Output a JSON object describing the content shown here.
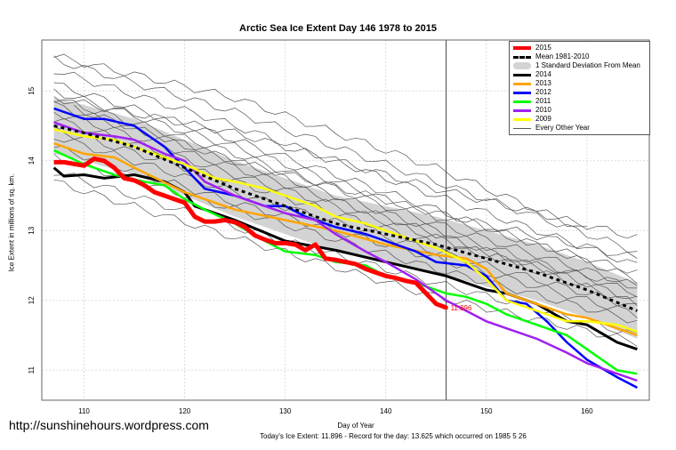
{
  "chart_data": {
    "type": "line",
    "title": "Arctic Sea Ice Extent Day 146 1978 to 2015",
    "xlabel": "Day of Year",
    "ylabel": "Ice Extent in millions of sq. km.",
    "xlim": [
      105.8,
      166.2
    ],
    "ylim": [
      10.57,
      15.73
    ],
    "xticks": [
      110,
      120,
      130,
      140,
      150,
      160
    ],
    "yticks": [
      11,
      12,
      13,
      14,
      15
    ],
    "grid": true,
    "vline_day": 146,
    "legend_placement": "top-right",
    "end_label": "11.896",
    "mean": {
      "name": "Mean 1981-2010",
      "color": "#000000",
      "points": [
        [
          107,
          14.5
        ],
        [
          110,
          14.4
        ],
        [
          115,
          14.2
        ],
        [
          120,
          13.9
        ],
        [
          125,
          13.6
        ],
        [
          130,
          13.35
        ],
        [
          135,
          13.1
        ],
        [
          140,
          12.95
        ],
        [
          145,
          12.8
        ],
        [
          150,
          12.6
        ],
        [
          155,
          12.4
        ],
        [
          160,
          12.15
        ],
        [
          165,
          11.85
        ]
      ]
    },
    "std_band": {
      "name": "1 Standard Deviation From Mean",
      "color": "#d3d3d3",
      "sd": 0.4
    },
    "series": [
      {
        "name": "2014",
        "color": "#000000",
        "points": [
          [
            107,
            13.9
          ],
          [
            108,
            13.78
          ],
          [
            110,
            13.8
          ],
          [
            112,
            13.75
          ],
          [
            115,
            13.8
          ],
          [
            118,
            13.7
          ],
          [
            120,
            13.55
          ],
          [
            121,
            13.35
          ],
          [
            125,
            13.15
          ],
          [
            130,
            12.85
          ],
          [
            135,
            12.72
          ],
          [
            140,
            12.55
          ],
          [
            143,
            12.45
          ],
          [
            146,
            12.35
          ],
          [
            150,
            12.15
          ],
          [
            152,
            12.1
          ],
          [
            155,
            11.95
          ],
          [
            158,
            11.7
          ],
          [
            160,
            11.65
          ],
          [
            163,
            11.4
          ],
          [
            165,
            11.3
          ]
        ]
      },
      {
        "name": "2013",
        "color": "#ffa500",
        "points": [
          [
            107,
            14.25
          ],
          [
            110,
            14.1
          ],
          [
            113,
            14.05
          ],
          [
            115,
            13.9
          ],
          [
            120,
            13.55
          ],
          [
            125,
            13.3
          ],
          [
            130,
            13.15
          ],
          [
            135,
            13.0
          ],
          [
            140,
            12.8
          ],
          [
            145,
            12.65
          ],
          [
            148,
            12.6
          ],
          [
            150,
            12.45
          ],
          [
            152,
            12.1
          ],
          [
            155,
            11.95
          ],
          [
            158,
            11.8
          ],
          [
            160,
            11.75
          ],
          [
            163,
            11.6
          ],
          [
            165,
            11.5
          ]
        ]
      },
      {
        "name": "2012",
        "color": "#0000ff",
        "points": [
          [
            107,
            14.75
          ],
          [
            110,
            14.6
          ],
          [
            112,
            14.6
          ],
          [
            115,
            14.5
          ],
          [
            118,
            14.2
          ],
          [
            120,
            13.9
          ],
          [
            122,
            13.6
          ],
          [
            125,
            13.5
          ],
          [
            128,
            13.35
          ],
          [
            130,
            13.35
          ],
          [
            132,
            13.2
          ],
          [
            135,
            13.05
          ],
          [
            138,
            12.95
          ],
          [
            140,
            12.85
          ],
          [
            143,
            12.7
          ],
          [
            145,
            12.55
          ],
          [
            148,
            12.5
          ],
          [
            150,
            12.35
          ],
          [
            152,
            12.0
          ],
          [
            154,
            11.95
          ],
          [
            156,
            11.7
          ],
          [
            158,
            11.4
          ],
          [
            160,
            11.15
          ],
          [
            163,
            10.9
          ],
          [
            165,
            10.75
          ]
        ]
      },
      {
        "name": "2011",
        "color": "#00ff00",
        "points": [
          [
            107,
            14.15
          ],
          [
            110,
            13.95
          ],
          [
            113,
            13.8
          ],
          [
            116,
            13.7
          ],
          [
            118,
            13.65
          ],
          [
            120,
            13.45
          ],
          [
            122,
            13.3
          ],
          [
            125,
            13.1
          ],
          [
            128,
            12.85
          ],
          [
            130,
            12.7
          ],
          [
            133,
            12.65
          ],
          [
            135,
            12.55
          ],
          [
            138,
            12.5
          ],
          [
            140,
            12.35
          ],
          [
            143,
            12.25
          ],
          [
            146,
            12.1
          ],
          [
            148,
            12.05
          ],
          [
            150,
            11.95
          ],
          [
            152,
            11.8
          ],
          [
            155,
            11.65
          ],
          [
            158,
            11.5
          ],
          [
            160,
            11.3
          ],
          [
            163,
            11.0
          ],
          [
            165,
            10.95
          ]
        ]
      },
      {
        "name": "2010",
        "color": "#a020f0",
        "points": [
          [
            107,
            14.55
          ],
          [
            110,
            14.4
          ],
          [
            113,
            14.35
          ],
          [
            115,
            14.3
          ],
          [
            118,
            14.1
          ],
          [
            120,
            14.0
          ],
          [
            122,
            13.7
          ],
          [
            125,
            13.5
          ],
          [
            128,
            13.35
          ],
          [
            130,
            13.25
          ],
          [
            133,
            13.15
          ],
          [
            135,
            12.95
          ],
          [
            138,
            12.7
          ],
          [
            140,
            12.55
          ],
          [
            143,
            12.3
          ],
          [
            145,
            12.1
          ],
          [
            146,
            12.0
          ],
          [
            148,
            11.85
          ],
          [
            150,
            11.7
          ],
          [
            152,
            11.6
          ],
          [
            155,
            11.45
          ],
          [
            158,
            11.25
          ],
          [
            160,
            11.1
          ],
          [
            163,
            10.95
          ],
          [
            165,
            10.85
          ]
        ]
      },
      {
        "name": "2009",
        "color": "#ffff00",
        "points": [
          [
            107,
            14.45
          ],
          [
            110,
            14.35
          ],
          [
            113,
            14.3
          ],
          [
            115,
            14.2
          ],
          [
            118,
            14.05
          ],
          [
            120,
            13.95
          ],
          [
            123,
            13.75
          ],
          [
            125,
            13.7
          ],
          [
            128,
            13.6
          ],
          [
            130,
            13.5
          ],
          [
            133,
            13.35
          ],
          [
            135,
            13.2
          ],
          [
            138,
            13.1
          ],
          [
            140,
            13.0
          ],
          [
            143,
            12.85
          ],
          [
            145,
            12.75
          ],
          [
            148,
            12.55
          ],
          [
            150,
            12.3
          ],
          [
            152,
            12.0
          ],
          [
            155,
            11.85
          ],
          [
            158,
            11.7
          ],
          [
            160,
            11.7
          ],
          [
            163,
            11.65
          ],
          [
            165,
            11.55
          ]
        ]
      },
      {
        "name": "2015",
        "color": "#ff0000",
        "points": [
          [
            107,
            13.98
          ],
          [
            108,
            13.98
          ],
          [
            110,
            13.93
          ],
          [
            111,
            14.03
          ],
          [
            112,
            14.0
          ],
          [
            113,
            13.9
          ],
          [
            114,
            13.75
          ],
          [
            115,
            13.72
          ],
          [
            116,
            13.65
          ],
          [
            117,
            13.55
          ],
          [
            118,
            13.5
          ],
          [
            119,
            13.45
          ],
          [
            120,
            13.4
          ],
          [
            121,
            13.2
          ],
          [
            122,
            13.13
          ],
          [
            123,
            13.13
          ],
          [
            124,
            13.15
          ],
          [
            125,
            13.12
          ],
          [
            126,
            13.05
          ],
          [
            127,
            12.93
          ],
          [
            128,
            12.87
          ],
          [
            129,
            12.82
          ],
          [
            130,
            12.82
          ],
          [
            131,
            12.8
          ],
          [
            132,
            12.72
          ],
          [
            133,
            12.8
          ],
          [
            134,
            12.6
          ],
          [
            135,
            12.58
          ],
          [
            136,
            12.55
          ],
          [
            137,
            12.52
          ],
          [
            138,
            12.45
          ],
          [
            139,
            12.4
          ],
          [
            140,
            12.35
          ],
          [
            141,
            12.32
          ],
          [
            142,
            12.28
          ],
          [
            143,
            12.25
          ],
          [
            144,
            12.1
          ],
          [
            145,
            11.95
          ],
          [
            146,
            11.896
          ]
        ]
      }
    ],
    "other_years": {
      "name": "Every Other Year",
      "color": "#555555",
      "lines": [
        [
          [
            107,
            15.5
          ],
          [
            125,
            14.9
          ],
          [
            145,
            13.9
          ],
          [
            160,
            13.0
          ]
        ],
        [
          [
            107,
            15.45
          ],
          [
            125,
            14.7
          ],
          [
            145,
            13.7
          ],
          [
            165,
            12.7
          ]
        ],
        [
          [
            107,
            15.3
          ],
          [
            125,
            14.5
          ],
          [
            145,
            13.5
          ],
          [
            165,
            12.5
          ]
        ],
        [
          [
            107,
            15.1
          ],
          [
            125,
            14.3
          ],
          [
            145,
            13.3
          ],
          [
            165,
            12.3
          ]
        ],
        [
          [
            107,
            15.0
          ],
          [
            125,
            14.2
          ],
          [
            145,
            13.2
          ],
          [
            165,
            12.4
          ]
        ],
        [
          [
            107,
            14.9
          ],
          [
            125,
            14.1
          ],
          [
            145,
            13.1
          ],
          [
            165,
            12.2
          ]
        ],
        [
          [
            107,
            14.8
          ],
          [
            125,
            14.0
          ],
          [
            145,
            13.0
          ],
          [
            165,
            12.1
          ]
        ],
        [
          [
            107,
            14.7
          ],
          [
            125,
            13.9
          ],
          [
            145,
            12.95
          ],
          [
            165,
            12.0
          ]
        ],
        [
          [
            107,
            14.6
          ],
          [
            125,
            13.8
          ],
          [
            145,
            12.9
          ],
          [
            165,
            11.95
          ]
        ],
        [
          [
            107,
            14.45
          ],
          [
            125,
            13.7
          ],
          [
            145,
            12.8
          ],
          [
            165,
            12.2
          ]
        ],
        [
          [
            107,
            14.35
          ],
          [
            125,
            13.55
          ],
          [
            145,
            12.7
          ],
          [
            165,
            11.9
          ]
        ],
        [
          [
            107,
            14.2
          ],
          [
            125,
            13.4
          ],
          [
            145,
            12.6
          ],
          [
            165,
            11.8
          ]
        ],
        [
          [
            107,
            14.05
          ],
          [
            125,
            13.3
          ],
          [
            145,
            12.45
          ],
          [
            165,
            11.7
          ]
        ],
        [
          [
            107,
            13.85
          ],
          [
            125,
            13.05
          ],
          [
            145,
            12.25
          ],
          [
            165,
            11.5
          ]
        ],
        [
          [
            107,
            13.7
          ],
          [
            125,
            12.9
          ],
          [
            145,
            12.05
          ],
          [
            165,
            11.4
          ]
        ],
        [
          [
            107,
            14.9
          ],
          [
            125,
            14.4
          ],
          [
            145,
            13.6
          ],
          [
            165,
            12.9
          ]
        ],
        [
          [
            109,
            14.75
          ],
          [
            125,
            14.0
          ],
          [
            145,
            13.25
          ],
          [
            165,
            12.6
          ]
        ]
      ]
    }
  },
  "labels": {
    "watermark": "http://sunshinehours.wordpress.com",
    "footer": "Today's Ice Extent: 11.896  - Record for the day: 13.625 which occurred on 1985 5 26"
  }
}
